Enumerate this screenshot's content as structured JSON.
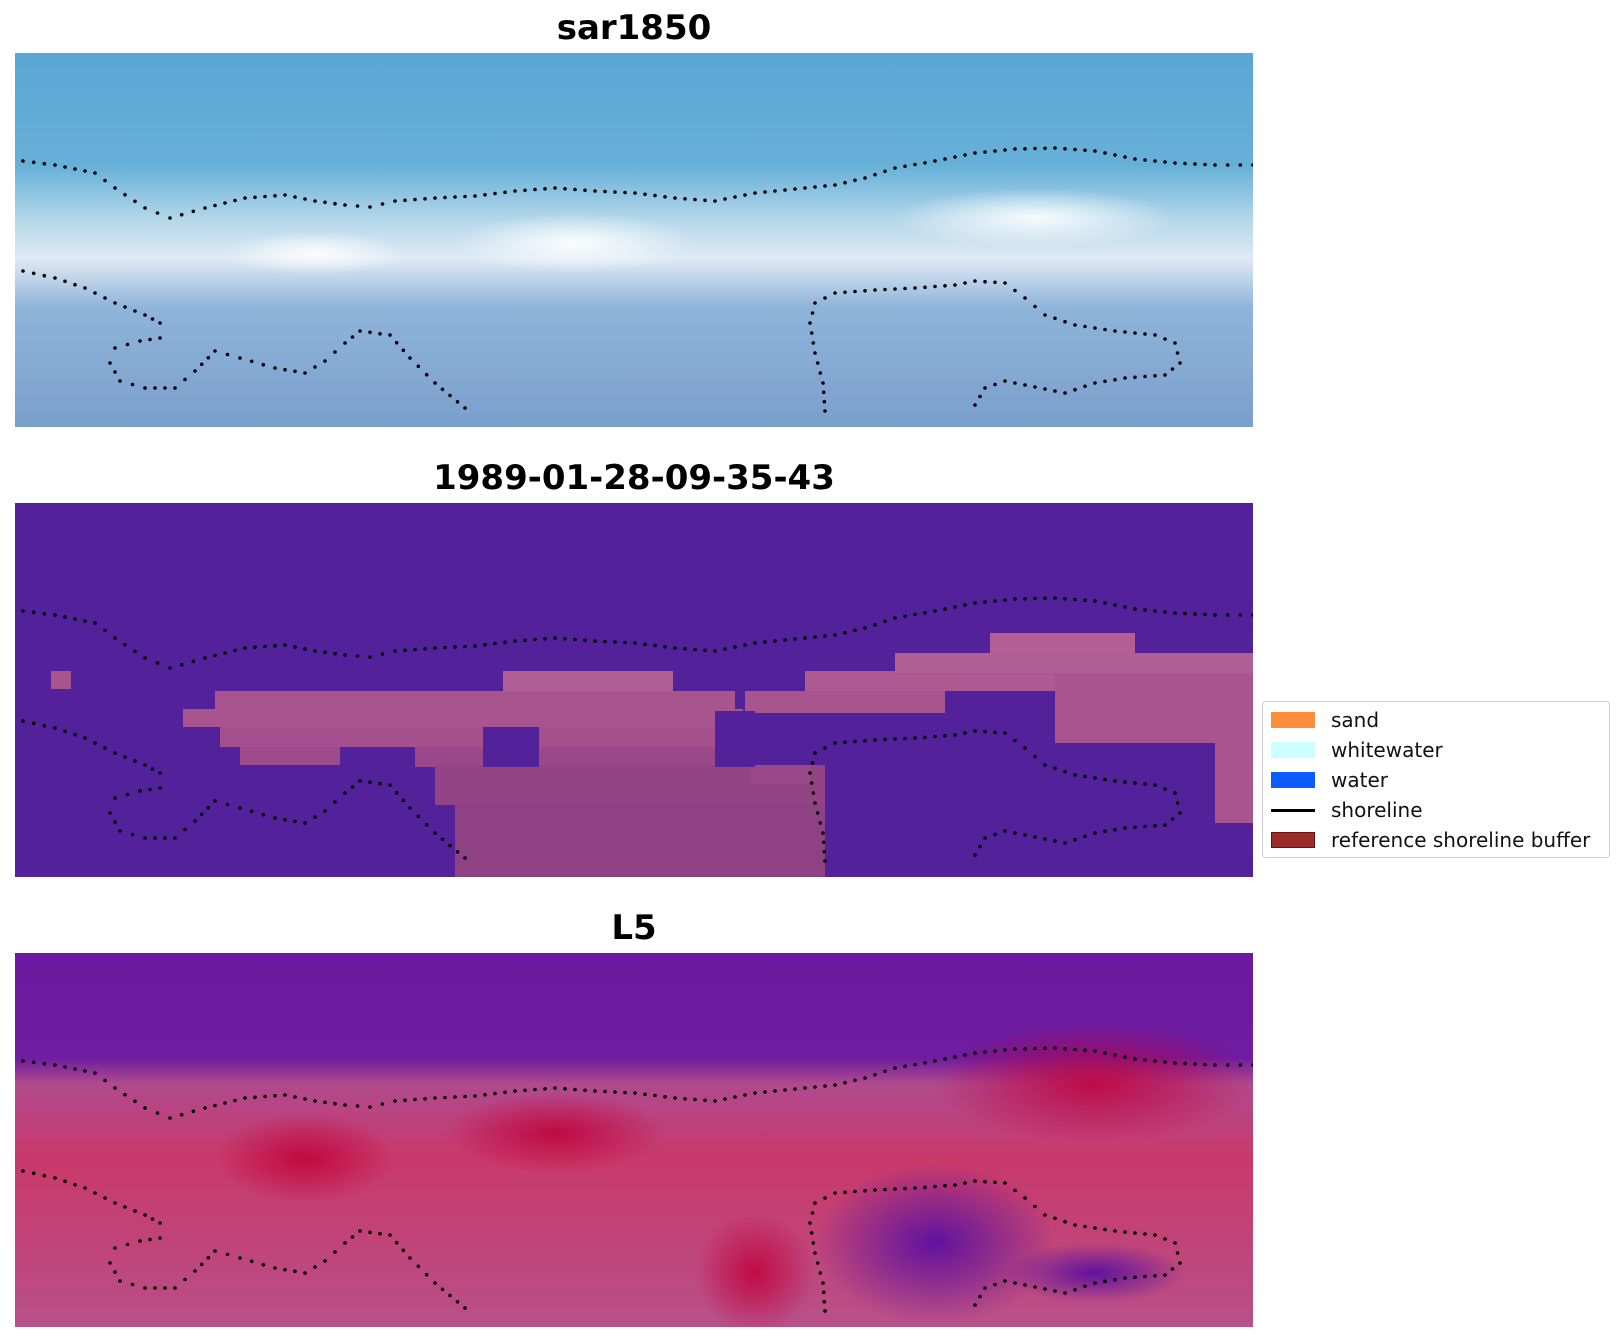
{
  "panels": [
    {
      "id": "rgb",
      "title": "sar1850"
    },
    {
      "id": "classified",
      "title": "1989-01-28-09-35-43"
    },
    {
      "id": "index",
      "title": "L5"
    }
  ],
  "legend": {
    "items": [
      {
        "label": "sand",
        "kind": "patch",
        "color": "#ff8c3a"
      },
      {
        "label": "whitewater",
        "kind": "patch",
        "color": "#ccffff"
      },
      {
        "label": "water",
        "kind": "patch",
        "color": "#0a5cff"
      },
      {
        "label": "shoreline",
        "kind": "line",
        "color": "#000000"
      },
      {
        "label": "reference shoreline buffer",
        "kind": "patch",
        "color": "#9b2a2a"
      }
    ]
  },
  "colors": {
    "classified_background": "#53229a",
    "classified_beach": "#a8548f",
    "index_water": "#6a1a9e",
    "index_sand": "#c9305f",
    "rgb_water": "#5aa6d4",
    "rgb_surf": "#e8f2fa",
    "reference_shoreline": "#000000"
  }
}
